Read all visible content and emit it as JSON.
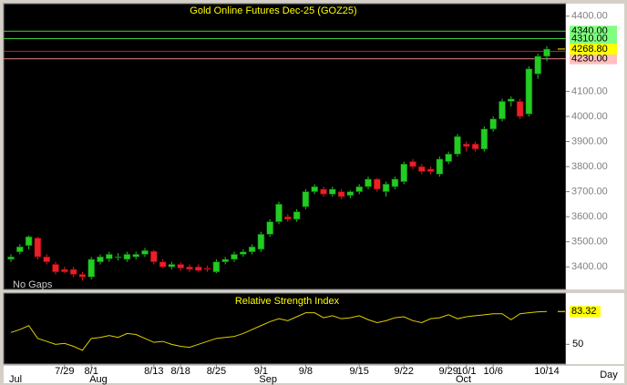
{
  "chart_data": {
    "type": "candlestick",
    "title": "Gold Online Futures Dec-25 (GOZ25)",
    "note": "No Gaps",
    "period": "Day",
    "categories": [
      null,
      null,
      null,
      null,
      null,
      null,
      "7/29",
      null,
      null,
      "8/1",
      null,
      null,
      null,
      null,
      null,
      null,
      "8/13",
      null,
      null,
      "8/18",
      null,
      null,
      null,
      "8/25",
      null,
      null,
      null,
      null,
      "9/1",
      null,
      null,
      null,
      null,
      "9/8",
      null,
      null,
      null,
      null,
      null,
      "9/15",
      null,
      null,
      null,
      null,
      "9/22",
      null,
      null,
      null,
      null,
      "9/29",
      null,
      "10/1",
      null,
      null,
      "10/6",
      null,
      null,
      null,
      null,
      null,
      "10/14",
      null
    ],
    "months": [
      "Jul",
      null,
      null,
      null,
      null,
      null,
      null,
      null,
      null,
      "Aug",
      null,
      null,
      null,
      null,
      null,
      null,
      null,
      null,
      null,
      null,
      null,
      null,
      null,
      null,
      null,
      null,
      null,
      null,
      "Sep",
      null,
      null,
      null,
      null,
      null,
      null,
      null,
      null,
      null,
      null,
      null,
      null,
      null,
      null,
      null,
      null,
      null,
      null,
      null,
      null,
      null,
      "Oct",
      null,
      null,
      null,
      null,
      null,
      null,
      null,
      null,
      null,
      null
    ],
    "open": [
      3430,
      3460,
      3485,
      3515,
      3440,
      3410,
      3390,
      3390,
      3370,
      3360,
      3420,
      3432,
      3440,
      3430,
      3440,
      3450,
      3462,
      3420,
      3400,
      3410,
      3400,
      3400,
      3395,
      3380,
      3420,
      3430,
      3450,
      3460,
      3470,
      3530,
      3580,
      3600,
      3590,
      3640,
      3700,
      3710,
      3690,
      3700,
      3685,
      3700,
      3720,
      3750,
      3700,
      3720,
      3740,
      3820,
      3800,
      3790,
      3770,
      3820,
      3850,
      3890,
      3890,
      3870,
      3950,
      3990,
      4060,
      4060,
      4010,
      4170,
      4240
    ],
    "high": [
      3450,
      3490,
      3525,
      3520,
      3450,
      3420,
      3400,
      3400,
      3380,
      3440,
      3450,
      3460,
      3455,
      3460,
      3460,
      3475,
      3468,
      3430,
      3420,
      3418,
      3410,
      3410,
      3405,
      3430,
      3440,
      3460,
      3470,
      3490,
      3540,
      3590,
      3660,
      3610,
      3630,
      3710,
      3730,
      3720,
      3720,
      3710,
      3705,
      3730,
      3760,
      3755,
      3740,
      3760,
      3820,
      3830,
      3810,
      3800,
      3840,
      3860,
      3930,
      3900,
      3900,
      3960,
      4000,
      4070,
      4080,
      4070,
      4200,
      4250,
      4280
    ],
    "low": [
      3420,
      3450,
      3470,
      3430,
      3410,
      3370,
      3375,
      3360,
      3345,
      3350,
      3410,
      3420,
      3425,
      3420,
      3430,
      3440,
      3410,
      3395,
      3390,
      3385,
      3380,
      3378,
      3380,
      3375,
      3410,
      3420,
      3440,
      3450,
      3460,
      3520,
      3570,
      3580,
      3580,
      3630,
      3690,
      3680,
      3680,
      3670,
      3675,
      3690,
      3710,
      3700,
      3680,
      3710,
      3730,
      3790,
      3770,
      3770,
      3760,
      3810,
      3840,
      3860,
      3860,
      3860,
      3940,
      3980,
      4040,
      3990,
      4000,
      4150,
      4220
    ],
    "close": [
      3440,
      3480,
      3520,
      3440,
      3420,
      3380,
      3380,
      3370,
      3360,
      3430,
      3440,
      3450,
      3440,
      3450,
      3450,
      3465,
      3420,
      3400,
      3410,
      3395,
      3390,
      3385,
      3390,
      3420,
      3430,
      3450,
      3460,
      3480,
      3530,
      3580,
      3650,
      3590,
      3620,
      3700,
      3720,
      3690,
      3710,
      3680,
      3700,
      3720,
      3750,
      3710,
      3730,
      3750,
      3810,
      3800,
      3780,
      3780,
      3830,
      3850,
      3920,
      3880,
      3870,
      3950,
      3990,
      4060,
      4070,
      4000,
      4190,
      4240,
      4268.8
    ],
    "up_color": "#22cc22",
    "down_color": "#e8202a",
    "ylim": [
      3310,
      4450
    ],
    "yticks": [
      {
        "value": 4400,
        "label": "4400.00"
      },
      {
        "value": 4100,
        "label": "4100.00"
      },
      {
        "value": 4000,
        "label": "4000.00"
      },
      {
        "value": 3900,
        "label": "3900.00"
      },
      {
        "value": 3800,
        "label": "3800.00"
      },
      {
        "value": 3700,
        "label": "3700.00"
      },
      {
        "value": 3600,
        "label": "3600.00"
      },
      {
        "value": 3500,
        "label": "3500.00"
      },
      {
        "value": 3400,
        "label": "3400.00"
      }
    ],
    "price_lines": [
      {
        "value": 4340,
        "label": "4340.00",
        "color": "#40d040",
        "label_color": "#80ff80"
      },
      {
        "value": 4310,
        "label": "4310.00",
        "color": "#40d040",
        "label_color": "#80ff80"
      },
      {
        "value": 4260,
        "label": "4260.00",
        "color": "#d02020",
        "label_color": "#ff3030"
      },
      {
        "value": 4230,
        "label": "4230.00",
        "color": "#e08080",
        "label_color": "#ffc0c0"
      }
    ],
    "last_price": {
      "value": 4268.8,
      "label": "4268.80",
      "color": "#ffff00"
    },
    "rsi": {
      "title": "Relative Strength Index",
      "color": "#e0d000",
      "values": [
        62,
        65,
        69,
        56,
        53,
        50,
        51,
        48,
        44,
        56,
        57,
        59,
        57,
        61,
        60,
        56,
        52,
        53,
        50,
        48,
        47,
        50,
        53,
        56,
        57,
        58,
        61,
        65,
        69,
        73,
        76,
        74,
        78,
        82,
        82,
        77,
        79,
        76,
        77,
        79,
        75,
        72,
        74,
        77,
        78,
        74,
        72,
        76,
        77,
        80,
        76,
        78,
        79,
        80,
        81,
        81,
        75,
        81,
        82,
        83,
        83.32
      ],
      "ylim": [
        30,
        102
      ],
      "yticks": [
        50
      ],
      "last": {
        "value": 83.32,
        "label": "83.32",
        "color": "#ffff00"
      }
    }
  }
}
